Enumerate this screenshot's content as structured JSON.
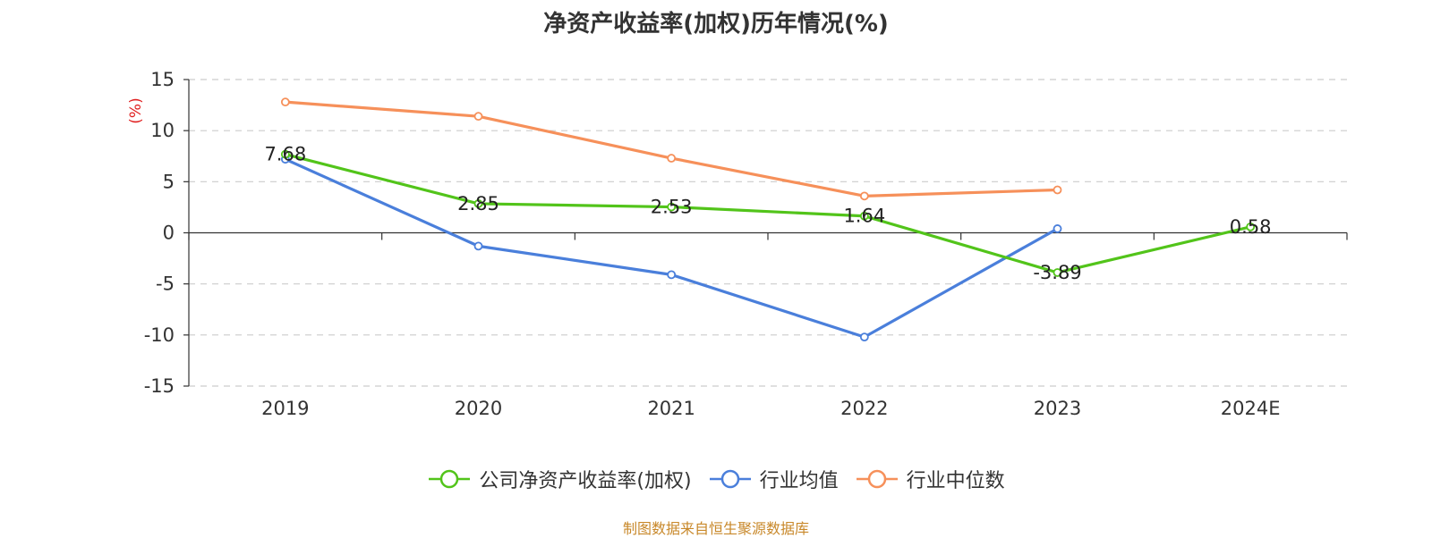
{
  "page": {
    "footer": "制图数据来自恒生聚源数据库"
  },
  "chart_data": {
    "type": "line",
    "title": "净资产收益率(加权)历年情况(%)",
    "ylabel": "(%)",
    "xlabel": "",
    "categories": [
      "2019",
      "2020",
      "2021",
      "2022",
      "2023",
      "2024E"
    ],
    "ylim": [
      -15,
      15
    ],
    "yticks": [
      15,
      10,
      5,
      0,
      -5,
      -10,
      -15
    ],
    "grid": true,
    "legend_position": "bottom",
    "series": [
      {
        "name": "公司净资产收益率(加权)",
        "color": "#52c41a",
        "values": [
          7.68,
          2.85,
          2.53,
          1.64,
          -3.89,
          0.58
        ],
        "labels": [
          "7.68",
          "2.85",
          "2.53",
          "1.64",
          "-3.89",
          "0.58"
        ]
      },
      {
        "name": "行业均值",
        "color": "#4a7fdb",
        "values": [
          7.2,
          -1.3,
          -4.1,
          -10.2,
          0.4,
          null
        ]
      },
      {
        "name": "行业中位数",
        "color": "#f6905a",
        "values": [
          12.8,
          11.4,
          7.3,
          3.6,
          4.2,
          null
        ]
      }
    ]
  }
}
